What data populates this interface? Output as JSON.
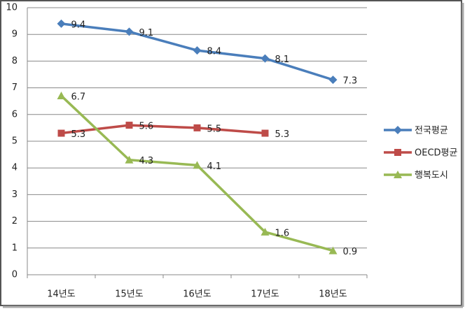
{
  "chart_data": {
    "type": "line",
    "categories": [
      "14년도",
      "15년도",
      "16년도",
      "17년도",
      "18년도"
    ],
    "series": [
      {
        "name": "전국평균",
        "color": "#4a7ebb",
        "marker": "diamond",
        "values": [
          9.4,
          9.1,
          8.4,
          8.1,
          7.3
        ]
      },
      {
        "name": "OECD평균",
        "color": "#be4b48",
        "marker": "square",
        "values": [
          5.3,
          5.6,
          5.5,
          5.3,
          null
        ]
      },
      {
        "name": "행복도시",
        "color": "#98b954",
        "marker": "triangle",
        "values": [
          6.7,
          4.3,
          4.1,
          1.6,
          0.9
        ]
      }
    ],
    "ylim": [
      0,
      10
    ],
    "yticks": [
      0,
      1,
      2,
      3,
      4,
      5,
      6,
      7,
      8,
      9,
      10
    ],
    "grid": true,
    "legend": "right"
  }
}
